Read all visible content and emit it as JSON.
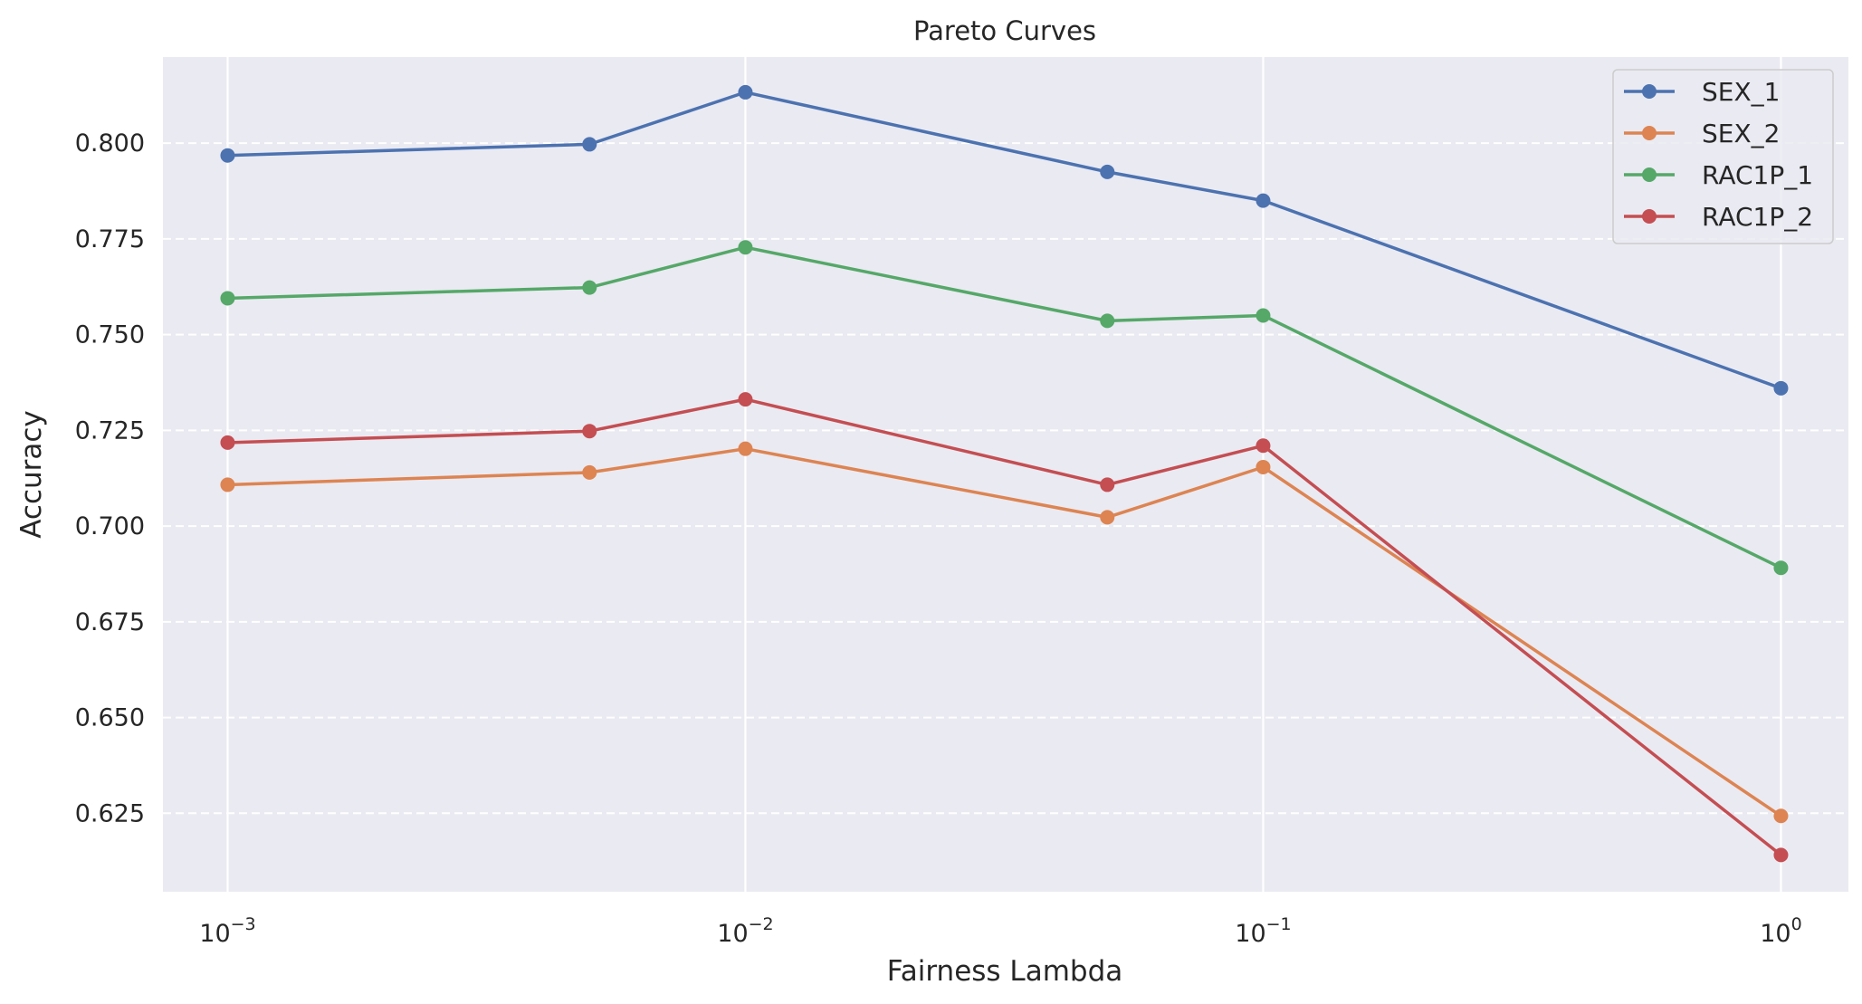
{
  "chart_data": {
    "type": "line",
    "title": "Pareto Curves",
    "xlabel": "Fairness Lambda",
    "ylabel": "Accuracy",
    "xscale": "log",
    "x": [
      0.001,
      0.005,
      0.01,
      0.05,
      0.1,
      1.0
    ],
    "xticks": [
      {
        "value": 0.001,
        "base": "10",
        "exp": "−3"
      },
      {
        "value": 0.01,
        "base": "10",
        "exp": "−2"
      },
      {
        "value": 0.1,
        "base": "10",
        "exp": "−1"
      },
      {
        "value": 1,
        "base": "10",
        "exp": "0"
      }
    ],
    "yticks": [
      "0.625",
      "0.650",
      "0.675",
      "0.700",
      "0.725",
      "0.750",
      "0.775",
      "0.800"
    ],
    "xlim": [
      0.00075,
      1.35
    ],
    "ylim": [
      0.6045,
      0.8225
    ],
    "grid": true,
    "legend_position": "top-right",
    "series": [
      {
        "name": "SEX_1",
        "color": "#4c72b0",
        "values": [
          0.7968,
          0.7997,
          0.8133,
          0.7925,
          0.785,
          0.736
        ]
      },
      {
        "name": "SEX_2",
        "color": "#dd8452",
        "values": [
          0.7108,
          0.714,
          0.7202,
          0.7023,
          0.7154,
          0.6243
        ]
      },
      {
        "name": "RAC1P_1",
        "color": "#55a868",
        "values": [
          0.7595,
          0.7623,
          0.7728,
          0.7536,
          0.755,
          0.6891
        ]
      },
      {
        "name": "RAC1P_2",
        "color": "#c44e52",
        "values": [
          0.7218,
          0.7248,
          0.7331,
          0.7108,
          0.721,
          0.6141
        ]
      }
    ]
  }
}
